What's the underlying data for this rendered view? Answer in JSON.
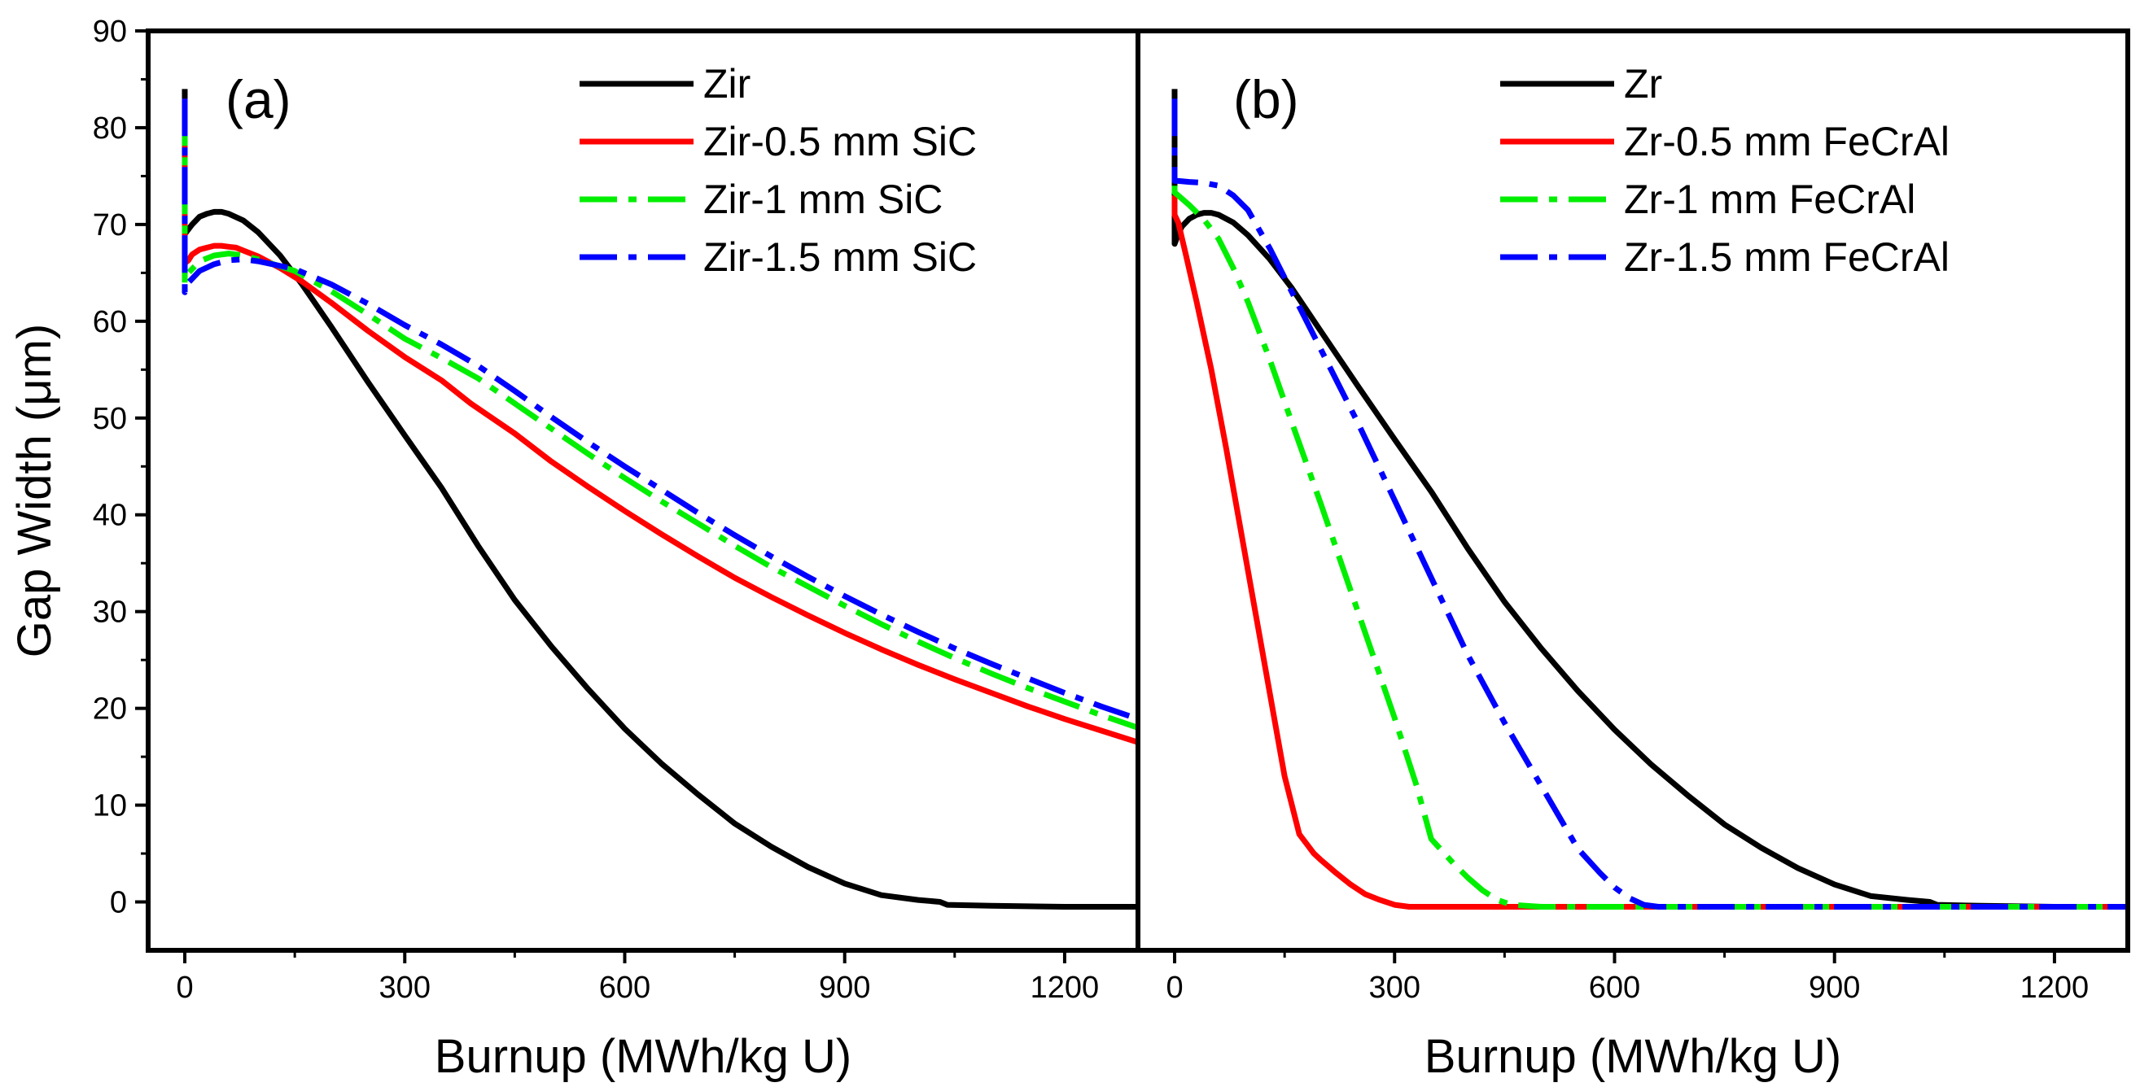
{
  "chart_data": [
    {
      "type": "line",
      "panel_label": "(a)",
      "xlabel": "Burnup (MWh/kg U)",
      "ylabel": "Gap Width (μm)",
      "xlim": [
        -50,
        1300
      ],
      "ylim": [
        -5,
        90
      ],
      "xticks": [
        0,
        300,
        600,
        900,
        1200
      ],
      "yticks": [
        0,
        10,
        20,
        30,
        40,
        50,
        60,
        70,
        80,
        90
      ],
      "legend_position": "top-right",
      "grid": false,
      "series": [
        {
          "name": "Zir",
          "color": "#000000",
          "dash": "solid",
          "x": [
            0,
            0,
            0,
            5,
            10,
            20,
            30,
            40,
            50,
            60,
            80,
            100,
            130,
            160,
            200,
            250,
            300,
            350,
            400,
            450,
            500,
            550,
            600,
            650,
            700,
            750,
            800,
            850,
            900,
            950,
            1000,
            1030,
            1040,
            1100,
            1200,
            1300
          ],
          "y": [
            84,
            69,
            69,
            69.5,
            70,
            70.8,
            71.1,
            71.3,
            71.3,
            71.1,
            70.4,
            69.2,
            66.8,
            63.8,
            59.4,
            53.7,
            48.2,
            42.8,
            36.8,
            31.2,
            26.4,
            22,
            17.9,
            14.3,
            11.1,
            8.1,
            5.7,
            3.6,
            1.9,
            0.7,
            0.2,
            0,
            -0.3,
            -0.4,
            -0.5,
            -0.5
          ]
        },
        {
          "name": "Zir-0.5 mm SiC",
          "color": "#ff0000",
          "dash": "solid",
          "x": [
            0,
            0,
            0,
            5,
            10,
            20,
            30,
            40,
            50,
            60,
            70,
            80,
            100,
            130,
            160,
            200,
            250,
            300,
            350,
            390,
            450,
            500,
            550,
            600,
            650,
            700,
            750,
            800,
            850,
            900,
            950,
            1000,
            1050,
            1100,
            1150,
            1200,
            1250,
            1300
          ],
          "y": [
            83,
            66,
            66,
            66.3,
            66.9,
            67.4,
            67.6,
            67.8,
            67.8,
            67.7,
            67.6,
            67.3,
            66.7,
            65.5,
            64.1,
            61.9,
            59,
            56.3,
            53.9,
            51.5,
            48.4,
            45.5,
            42.9,
            40.4,
            38,
            35.7,
            33.5,
            31.5,
            29.6,
            27.8,
            26.1,
            24.5,
            23,
            21.6,
            20.2,
            18.9,
            17.7,
            16.5
          ]
        },
        {
          "name": "Zir-1 mm SiC",
          "color": "#00ee00",
          "dash": "dashdot",
          "x": [
            0,
            0,
            0,
            5,
            20,
            40,
            60,
            80,
            100,
            150,
            200,
            250,
            300,
            350,
            400,
            450,
            500,
            550,
            600,
            650,
            700,
            750,
            800,
            850,
            900,
            950,
            1000,
            1050,
            1100,
            1150,
            1200,
            1250,
            1300
          ],
          "y": [
            82,
            64,
            64,
            65,
            66.2,
            66.8,
            67,
            66.8,
            66.4,
            65.2,
            63.1,
            60.7,
            58.2,
            56.2,
            54.1,
            51.5,
            48.9,
            46.3,
            43.8,
            41.4,
            39.1,
            36.8,
            34.6,
            32.6,
            30.6,
            28.7,
            26.9,
            25.2,
            23.6,
            22.1,
            20.7,
            19.3,
            18
          ]
        },
        {
          "name": "Zir-1.5 mm SiC",
          "color": "#0000ff",
          "dash": "dashdot",
          "x": [
            0,
            0,
            0,
            5,
            20,
            40,
            60,
            80,
            100,
            150,
            200,
            250,
            300,
            350,
            400,
            450,
            500,
            550,
            600,
            650,
            700,
            750,
            800,
            850,
            900,
            950,
            1000,
            1050,
            1100,
            1150,
            1200,
            1250,
            1300
          ],
          "y": [
            83,
            63,
            63,
            64,
            65.2,
            65.9,
            66.3,
            66.4,
            66.2,
            65.4,
            63.8,
            61.8,
            59.6,
            57.6,
            55.4,
            52.8,
            50.1,
            47.5,
            45,
            42.6,
            40.2,
            37.9,
            35.7,
            33.6,
            31.6,
            29.7,
            27.9,
            26.2,
            24.6,
            23.1,
            21.6,
            20.2,
            18.9
          ]
        }
      ]
    },
    {
      "type": "line",
      "panel_label": "(b)",
      "xlabel": "Burnup (MWh/kg U)",
      "ylabel": "",
      "xlim": [
        -50,
        1300
      ],
      "ylim": [
        -5,
        90
      ],
      "xticks": [
        0,
        300,
        600,
        900,
        1200
      ],
      "yticks": [
        0,
        10,
        20,
        30,
        40,
        50,
        60,
        70,
        80,
        90
      ],
      "legend_position": "top-right",
      "grid": false,
      "series": [
        {
          "name": "Zr",
          "color": "#000000",
          "dash": "solid",
          "x": [
            0,
            0,
            0,
            5,
            10,
            20,
            30,
            40,
            50,
            60,
            80,
            100,
            130,
            160,
            200,
            250,
            300,
            350,
            400,
            450,
            500,
            550,
            600,
            650,
            700,
            750,
            800,
            850,
            900,
            950,
            1000,
            1030,
            1040,
            1100,
            1200,
            1300
          ],
          "y": [
            84,
            68,
            68,
            69,
            69.8,
            70.6,
            71,
            71.2,
            71.2,
            71,
            70.2,
            68.9,
            66.4,
            63.4,
            58.9,
            53.3,
            47.8,
            42.4,
            36.5,
            31,
            26.2,
            21.8,
            17.8,
            14.2,
            11,
            8,
            5.6,
            3.5,
            1.8,
            0.6,
            0.2,
            0,
            -0.3,
            -0.4,
            -0.5,
            -0.5
          ]
        },
        {
          "name": "Zr-0.5 mm FeCrAl",
          "color": "#ff0000",
          "dash": "solid",
          "x": [
            0,
            0,
            0,
            5,
            15,
            30,
            50,
            70,
            90,
            110,
            130,
            150,
            170,
            180,
            190,
            200,
            220,
            240,
            260,
            280,
            300,
            320,
            400,
            500,
            600,
            700,
            800,
            900,
            1000,
            1100,
            1200,
            1300
          ],
          "y": [
            73,
            71,
            71,
            70.2,
            67,
            62,
            55,
            47,
            38.5,
            30,
            21.5,
            13,
            7,
            6,
            5,
            4.3,
            3,
            1.8,
            0.8,
            0.2,
            -0.3,
            -0.5,
            -0.5,
            -0.5,
            -0.5,
            -0.5,
            -0.5,
            -0.5,
            -0.5,
            -0.5,
            -0.5,
            -0.5
          ]
        },
        {
          "name": "Zr-1 mm FeCrAl",
          "color": "#00ee00",
          "dash": "dashdot",
          "x": [
            0,
            0,
            0,
            5,
            20,
            40,
            60,
            80,
            100,
            130,
            160,
            200,
            250,
            300,
            330,
            350,
            380,
            400,
            420,
            440,
            460,
            500,
            600,
            700,
            800,
            900,
            1000,
            1100,
            1200,
            1300
          ],
          "y": [
            74,
            73.3,
            73.3,
            73,
            72,
            70.5,
            68.5,
            65.5,
            62,
            56,
            49.5,
            41,
            30,
            19,
            12,
            6.5,
            4,
            2.5,
            1.2,
            0.2,
            -0.3,
            -0.5,
            -0.5,
            -0.5,
            -0.5,
            -0.5,
            -0.5,
            -0.5,
            -0.5,
            -0.5
          ]
        },
        {
          "name": "Zr-1.5 mm FeCrAl",
          "color": "#0000ff",
          "dash": "dashdot",
          "x": [
            0,
            0,
            0,
            5,
            20,
            40,
            60,
            80,
            100,
            130,
            160,
            200,
            250,
            300,
            350,
            400,
            450,
            500,
            550,
            580,
            600,
            620,
            640,
            660,
            700,
            800,
            900,
            1000,
            1100,
            1200,
            1300
          ],
          "y": [
            83,
            74.5,
            74.5,
            74.5,
            74.4,
            74.3,
            74,
            73,
            71.5,
            67.5,
            63,
            57,
            49.5,
            41.5,
            33.5,
            25.5,
            18.5,
            12,
            5.5,
            3,
            1.5,
            0.4,
            -0.3,
            -0.5,
            -0.5,
            -0.5,
            -0.5,
            -0.5,
            -0.5,
            -0.5,
            -0.5
          ]
        }
      ]
    }
  ]
}
